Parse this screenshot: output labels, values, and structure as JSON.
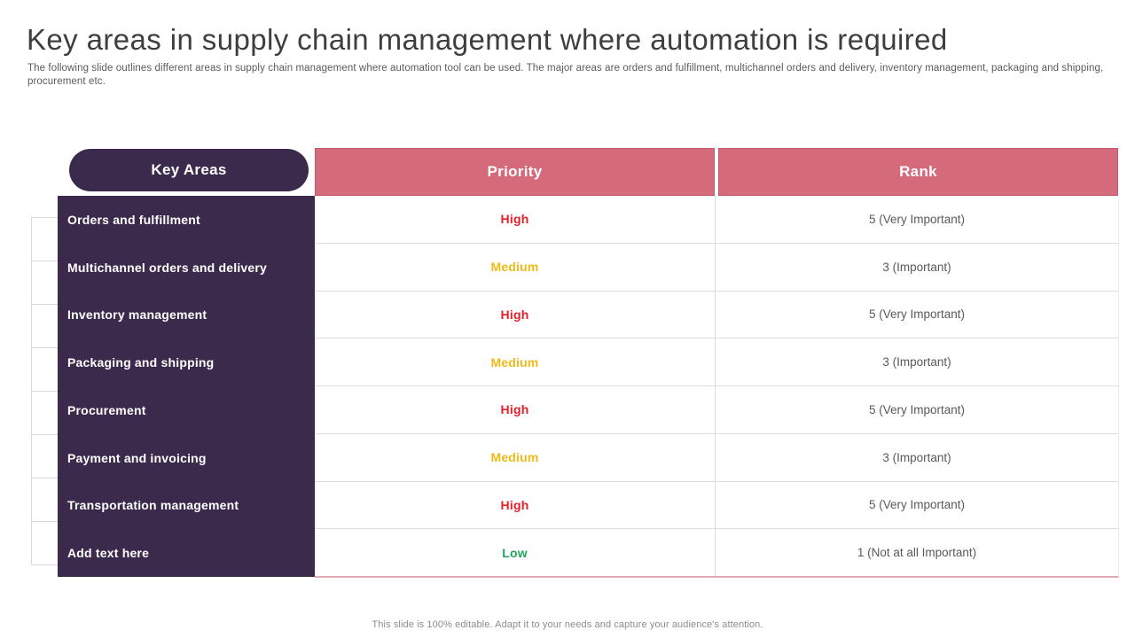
{
  "slide": {
    "title": "Key areas in supply chain management where automation is required",
    "subtitle": "The following slide outlines different areas in supply chain management where automation tool can be used. The major areas are orders and fulfillment, multichannel orders and delivery, inventory management, packaging and shipping, procurement etc.",
    "footer": "This slide is 100% editable. Adapt it to your needs and capture your audience's attention."
  },
  "table": {
    "key_areas_header": "Key Areas",
    "columns": [
      "Priority",
      "Rank"
    ],
    "rows": [
      {
        "area": "Orders and fulfillment",
        "priority": "High",
        "level": "high",
        "rank": "5 (Very Important)"
      },
      {
        "area": "Multichannel orders and delivery",
        "priority": "Medium",
        "level": "medium",
        "rank": "3 (Important)"
      },
      {
        "area": "Inventory management",
        "priority": "High",
        "level": "high",
        "rank": "5 (Very Important)"
      },
      {
        "area": "Packaging and shipping",
        "priority": "Medium",
        "level": "medium",
        "rank": "3 (Important)"
      },
      {
        "area": "Procurement",
        "priority": "High",
        "level": "high",
        "rank": "5 (Very Important)"
      },
      {
        "area": "Payment and invoicing",
        "priority": "Medium",
        "level": "medium",
        "rank": "3 (Important)"
      },
      {
        "area": "Transportation management",
        "priority": "High",
        "level": "high",
        "rank": "5 (Very Important)"
      },
      {
        "area": "Add text here",
        "priority": "Low",
        "level": "low",
        "rank": "1 (Not at all Important)"
      }
    ]
  },
  "colors": {
    "panel_purple": "#3b2a4c",
    "header_pink": "#d56a7b",
    "priority": {
      "high": "#e2212a",
      "medium": "#efba17",
      "low": "#23a45e"
    }
  },
  "decor_cells": 8
}
